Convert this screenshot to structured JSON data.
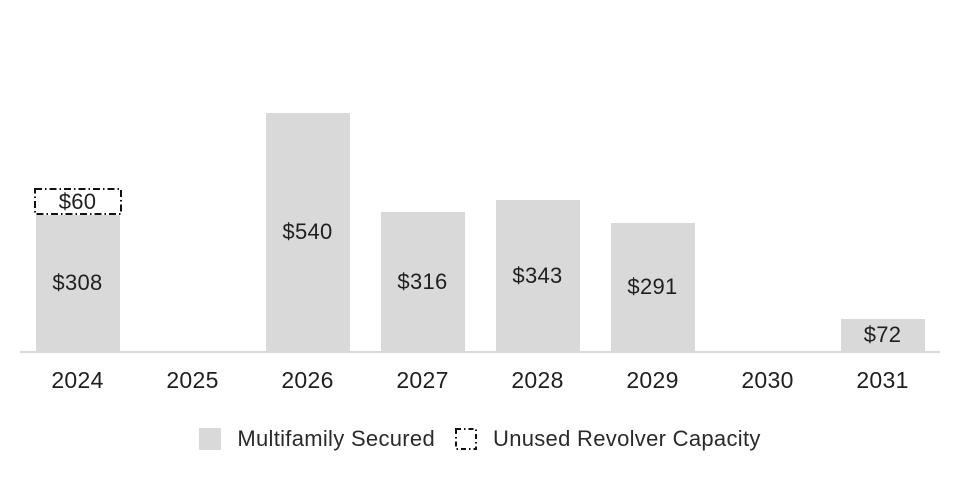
{
  "chart_data": {
    "type": "bar",
    "stacked": true,
    "categories": [
      "2024",
      "2025",
      "2026",
      "2027",
      "2028",
      "2029",
      "2030",
      "2031"
    ],
    "series": [
      {
        "name": "Multifamily Secured",
        "style": "solid-fill",
        "values": [
          308,
          0,
          540,
          316,
          343,
          291,
          0,
          72
        ]
      },
      {
        "name": "Unused Revolver Capacity",
        "style": "dash-dot-outline",
        "values": [
          60,
          0,
          0,
          0,
          0,
          0,
          0,
          0
        ]
      }
    ],
    "value_prefix": "$",
    "bar_labels_shown": true,
    "title": "",
    "xlabel": "",
    "ylabel": "",
    "ylim": [
      0,
      600
    ],
    "grid": false,
    "legend_position": "bottom"
  },
  "colors": {
    "background": "#ffffff",
    "bar_fill": "#d9d9d9",
    "revolver_outline": "#111111",
    "axis_line": "#d9d9d9",
    "label_text": "#1f1f1f"
  }
}
